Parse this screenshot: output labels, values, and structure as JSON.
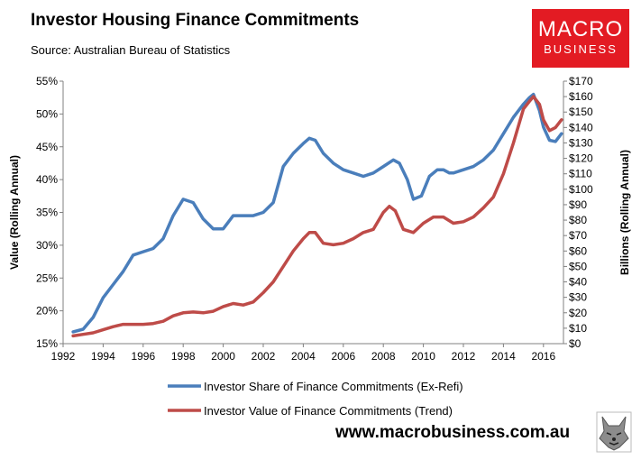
{
  "header": {
    "title": "Investor Housing Finance Commitments",
    "subtitle": "Source: Australian Bureau of Statistics"
  },
  "logo": {
    "line1": "MACRO",
    "line2": "BUSINESS",
    "color": "#e31b23"
  },
  "footer": {
    "website": "www.macrobusiness.com.au"
  },
  "chart_data": {
    "type": "line",
    "title": "Investor Housing Finance Commitments",
    "subtitle": "Source: Australian Bureau of Statistics",
    "xlim": [
      1992,
      2017
    ],
    "x_ticks": [
      "1992",
      "1994",
      "1996",
      "1998",
      "2000",
      "2002",
      "2004",
      "2006",
      "2008",
      "2010",
      "2012",
      "2014",
      "2016"
    ],
    "ylabel_left": "Value (Rolling Annual)",
    "ylabel_right": "Billions (Rolling Annual)",
    "ylim_left": [
      15,
      55
    ],
    "ylim_right": [
      0,
      170
    ],
    "left_ticks": [
      "55%",
      "50%",
      "45%",
      "40%",
      "35%",
      "30%",
      "25%",
      "20%",
      "15%"
    ],
    "right_ticks": [
      "$170",
      "$160",
      "$150",
      "$140",
      "$130",
      "$120",
      "$110",
      "$100",
      "$90",
      "$80",
      "$70",
      "$60",
      "$50",
      "$40",
      "$30",
      "$20",
      "$10",
      "$0"
    ],
    "grid": false,
    "legend_position": "bottom",
    "series": [
      {
        "name": "Investor Share of Finance Commitments (Ex-Refi)",
        "axis": "left",
        "unit": "%",
        "color": "#4a7ebb",
        "x": [
          1992.5,
          1993.0,
          1993.5,
          1994.0,
          1994.5,
          1995.0,
          1995.5,
          1996.0,
          1996.5,
          1997.0,
          1997.5,
          1998.0,
          1998.5,
          1999.0,
          1999.5,
          2000.0,
          2000.5,
          2001.0,
          2001.5,
          2002.0,
          2002.5,
          2003.0,
          2003.5,
          2004.0,
          2004.3,
          2004.6,
          2005.0,
          2005.5,
          2006.0,
          2006.5,
          2007.0,
          2007.5,
          2008.0,
          2008.5,
          2008.8,
          2009.2,
          2009.5,
          2009.9,
          2010.3,
          2010.7,
          2011.0,
          2011.3,
          2011.5,
          2012.0,
          2012.5,
          2013.0,
          2013.5,
          2014.0,
          2014.5,
          2015.0,
          2015.3,
          2015.5,
          2015.8,
          2016.0,
          2016.3,
          2016.6,
          2016.9
        ],
        "values": [
          16.8,
          17.2,
          19.0,
          22.0,
          24.0,
          26.0,
          28.5,
          29.0,
          29.5,
          31.0,
          34.5,
          37.0,
          36.5,
          34.0,
          32.5,
          32.5,
          34.5,
          34.5,
          34.5,
          35.0,
          36.5,
          42.0,
          44.0,
          45.5,
          46.3,
          46.0,
          44.0,
          42.5,
          41.5,
          41.0,
          40.5,
          41.0,
          42.0,
          43.0,
          42.5,
          40.0,
          37.0,
          37.5,
          40.5,
          41.5,
          41.5,
          41.0,
          41.0,
          41.5,
          42.0,
          43.0,
          44.5,
          47.0,
          49.5,
          51.5,
          52.5,
          53.0,
          50.5,
          48.0,
          46.0,
          45.8,
          47.0
        ]
      },
      {
        "name": "Investor Value of Finance Commitments (Trend)",
        "axis": "right",
        "unit": "$B",
        "color": "#be4b48",
        "x": [
          1992.5,
          1993.0,
          1993.5,
          1994.0,
          1994.5,
          1995.0,
          1995.5,
          1996.0,
          1996.5,
          1997.0,
          1997.5,
          1998.0,
          1998.5,
          1999.0,
          1999.5,
          2000.0,
          2000.5,
          2001.0,
          2001.5,
          2002.0,
          2002.5,
          2003.0,
          2003.5,
          2004.0,
          2004.3,
          2004.6,
          2005.0,
          2005.5,
          2006.0,
          2006.5,
          2007.0,
          2007.5,
          2008.0,
          2008.3,
          2008.6,
          2009.0,
          2009.5,
          2010.0,
          2010.5,
          2011.0,
          2011.5,
          2012.0,
          2012.5,
          2013.0,
          2013.5,
          2014.0,
          2014.5,
          2015.0,
          2015.3,
          2015.5,
          2015.8,
          2016.0,
          2016.3,
          2016.6,
          2016.9
        ],
        "values": [
          5,
          6,
          7,
          9,
          11,
          12.5,
          12.5,
          12.5,
          13,
          14.5,
          18,
          20,
          20.5,
          20,
          21,
          24,
          26,
          25,
          27,
          33,
          40,
          50,
          60,
          68,
          72,
          72,
          65,
          64,
          65,
          68,
          72,
          74,
          85,
          89,
          86,
          74,
          72,
          78,
          82,
          82,
          78,
          79,
          82,
          88,
          95,
          110,
          130,
          152,
          157,
          160,
          155,
          145,
          138,
          140,
          145
        ]
      }
    ]
  }
}
